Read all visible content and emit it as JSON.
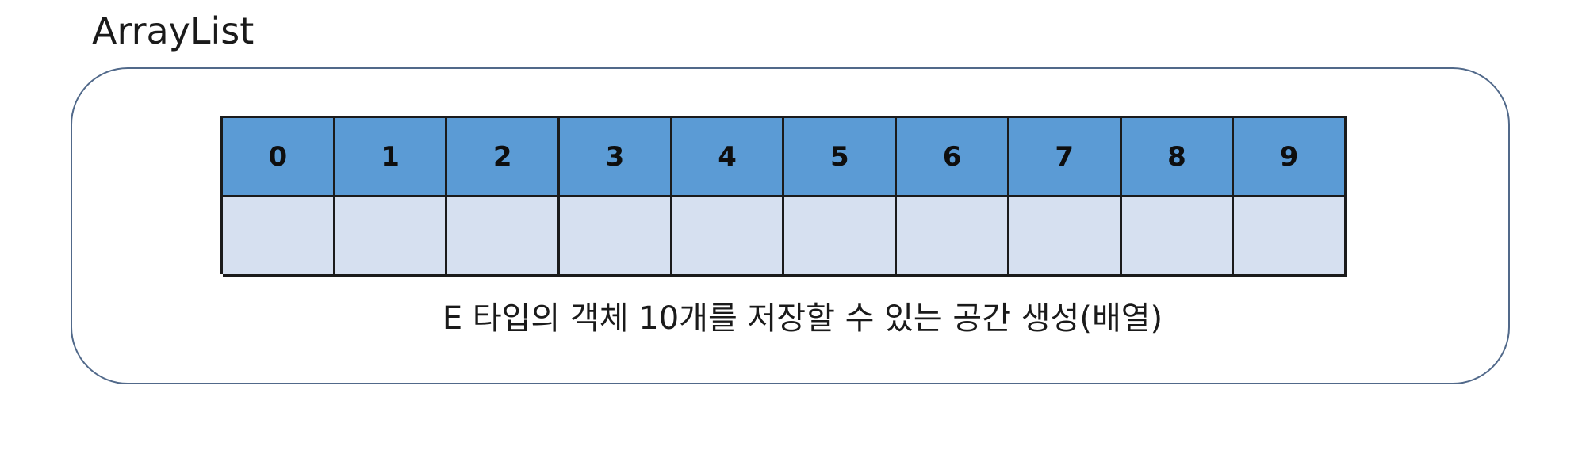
{
  "title": "ArrayList",
  "array": {
    "indices": [
      "0",
      "1",
      "2",
      "3",
      "4",
      "5",
      "6",
      "7",
      "8",
      "9"
    ],
    "slots": [
      "",
      "",
      "",
      "",
      "",
      "",
      "",
      "",
      "",
      ""
    ]
  },
  "caption": "E 타입의 객체 10개를 저장할 수 있는 공간 생성(배열)",
  "colors": {
    "index_fill": "#5b9bd5",
    "slot_fill": "#d6e0f0",
    "frame_border": "#51698a",
    "cell_border": "#1b1b1b"
  }
}
